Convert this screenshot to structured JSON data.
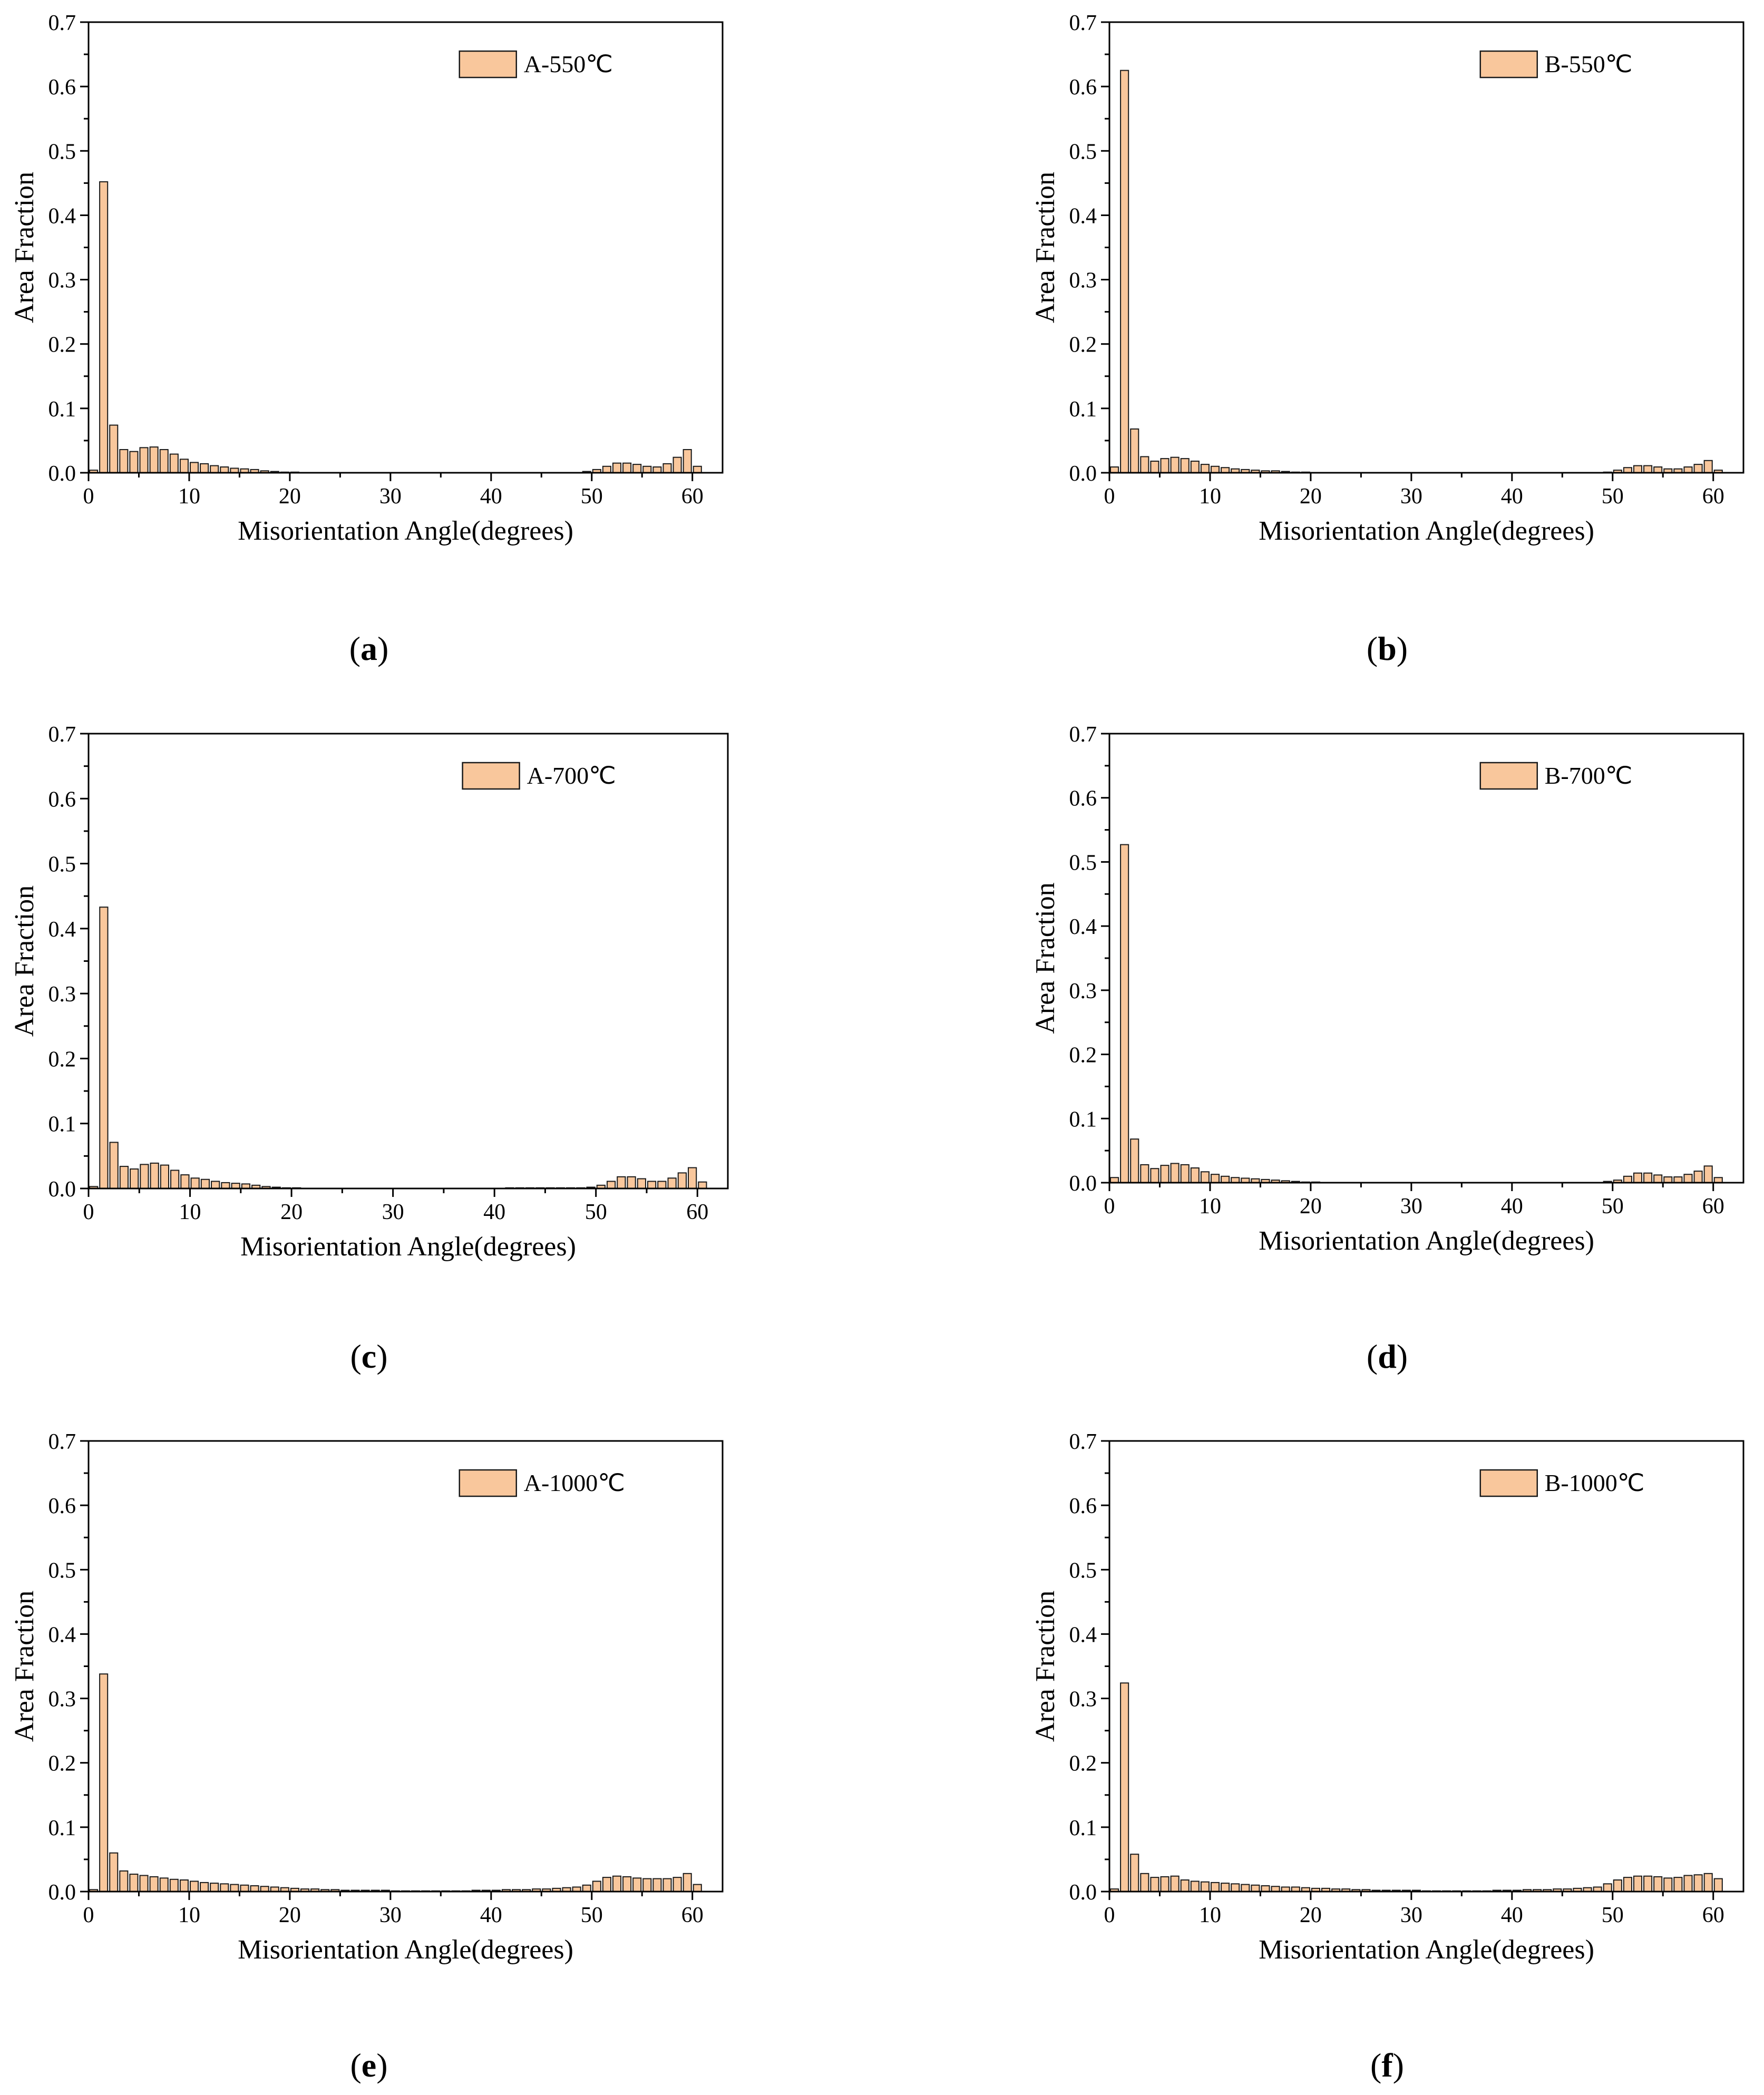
{
  "figure": {
    "bar_color": "#F9C79C",
    "bar_edge": "#1a1a1a"
  },
  "chart_data": [
    {
      "type": "bar",
      "panel": "(a)",
      "legend": "A-550℃",
      "legend_position": "top-right",
      "xlabel": "Misorientation Angle(degrees)",
      "ylabel": "Area Fraction",
      "xlim": [
        0,
        63
      ],
      "ylim": [
        0,
        0.7
      ],
      "xticks": [
        0,
        10,
        20,
        30,
        40,
        50,
        60
      ],
      "yticks": [
        0.0,
        0.1,
        0.2,
        0.3,
        0.4,
        0.5,
        0.6,
        0.7
      ],
      "bin_width": 1,
      "x": [
        0,
        1,
        2,
        3,
        4,
        5,
        6,
        7,
        8,
        9,
        10,
        11,
        12,
        13,
        14,
        15,
        16,
        17,
        18,
        19,
        20,
        21,
        22,
        23,
        24,
        25,
        26,
        27,
        28,
        29,
        30,
        31,
        32,
        33,
        34,
        35,
        36,
        37,
        38,
        39,
        40,
        41,
        42,
        43,
        44,
        45,
        46,
        47,
        48,
        49,
        50,
        51,
        52,
        53,
        54,
        55,
        56,
        57,
        58,
        59,
        60
      ],
      "values": [
        0.004,
        0.452,
        0.074,
        0.036,
        0.033,
        0.039,
        0.04,
        0.036,
        0.029,
        0.021,
        0.016,
        0.014,
        0.011,
        0.009,
        0.007,
        0.006,
        0.005,
        0.003,
        0.002,
        0.001,
        0.001,
        0,
        0,
        0,
        0,
        0,
        0,
        0,
        0,
        0,
        0,
        0,
        0,
        0,
        0,
        0,
        0,
        0,
        0,
        0,
        0,
        0,
        0,
        0,
        0,
        0,
        0,
        0,
        0,
        0.002,
        0.005,
        0.01,
        0.015,
        0.015,
        0.013,
        0.01,
        0.009,
        0.014,
        0.024,
        0.036,
        0.01
      ]
    },
    {
      "type": "bar",
      "panel": "(b)",
      "legend": "B-550℃",
      "legend_position": "top-right",
      "xlabel": "Misorientation Angle(degrees)",
      "ylabel": "Area Fraction",
      "xlim": [
        0,
        63
      ],
      "ylim": [
        0,
        0.7
      ],
      "xticks": [
        0,
        10,
        20,
        30,
        40,
        50,
        60
      ],
      "yticks": [
        0.0,
        0.1,
        0.2,
        0.3,
        0.4,
        0.5,
        0.6,
        0.7
      ],
      "bin_width": 1,
      "x": [
        0,
        1,
        2,
        3,
        4,
        5,
        6,
        7,
        8,
        9,
        10,
        11,
        12,
        13,
        14,
        15,
        16,
        17,
        18,
        19,
        20,
        21,
        22,
        23,
        24,
        25,
        26,
        27,
        28,
        29,
        30,
        31,
        32,
        33,
        34,
        35,
        36,
        37,
        38,
        39,
        40,
        41,
        42,
        43,
        44,
        45,
        46,
        47,
        48,
        49,
        50,
        51,
        52,
        53,
        54,
        55,
        56,
        57,
        58,
        59,
        60
      ],
      "values": [
        0.009,
        0.625,
        0.068,
        0.025,
        0.018,
        0.022,
        0.024,
        0.022,
        0.018,
        0.013,
        0.01,
        0.008,
        0.006,
        0.005,
        0.004,
        0.003,
        0.003,
        0.002,
        0.001,
        0.001,
        0,
        0,
        0,
        0,
        0,
        0,
        0,
        0,
        0,
        0,
        0,
        0,
        0,
        0,
        0,
        0,
        0,
        0,
        0,
        0,
        0,
        0,
        0,
        0,
        0,
        0,
        0,
        0,
        0,
        0.001,
        0.004,
        0.008,
        0.011,
        0.011,
        0.009,
        0.006,
        0.006,
        0.009,
        0.013,
        0.019,
        0.004
      ]
    },
    {
      "type": "bar",
      "panel": "(c)",
      "legend": "A-700℃",
      "legend_position": "top-right",
      "xlabel": "Misorientation Angle(degrees)",
      "ylabel": "Area Fraction",
      "xlim": [
        0,
        63
      ],
      "ylim": [
        0,
        0.7
      ],
      "xticks": [
        0,
        10,
        20,
        30,
        40,
        50,
        60
      ],
      "yticks": [
        0.0,
        0.1,
        0.2,
        0.3,
        0.4,
        0.5,
        0.6,
        0.7
      ],
      "bin_width": 1,
      "x": [
        0,
        1,
        2,
        3,
        4,
        5,
        6,
        7,
        8,
        9,
        10,
        11,
        12,
        13,
        14,
        15,
        16,
        17,
        18,
        19,
        20,
        21,
        22,
        23,
        24,
        25,
        26,
        27,
        28,
        29,
        30,
        31,
        32,
        33,
        34,
        35,
        36,
        37,
        38,
        39,
        40,
        41,
        42,
        43,
        44,
        45,
        46,
        47,
        48,
        49,
        50,
        51,
        52,
        53,
        54,
        55,
        56,
        57,
        58,
        59,
        60
      ],
      "values": [
        0.003,
        0.433,
        0.071,
        0.034,
        0.03,
        0.037,
        0.039,
        0.036,
        0.028,
        0.021,
        0.016,
        0.014,
        0.011,
        0.009,
        0.008,
        0.007,
        0.005,
        0.003,
        0.002,
        0.001,
        0.001,
        0,
        0,
        0,
        0,
        0,
        0,
        0,
        0,
        0,
        0,
        0,
        0,
        0,
        0,
        0,
        0,
        0,
        0,
        0,
        0,
        0.001,
        0.001,
        0.001,
        0.001,
        0.001,
        0.001,
        0.001,
        0.001,
        0.002,
        0.005,
        0.011,
        0.018,
        0.018,
        0.015,
        0.011,
        0.011,
        0.016,
        0.024,
        0.032,
        0.01
      ]
    },
    {
      "type": "bar",
      "panel": "(d)",
      "legend": "B-700℃",
      "legend_position": "top-right",
      "xlabel": "Misorientation Angle(degrees)",
      "ylabel": "Area Fraction",
      "xlim": [
        0,
        63
      ],
      "ylim": [
        0,
        0.7
      ],
      "xticks": [
        0,
        10,
        20,
        30,
        40,
        50,
        60
      ],
      "yticks": [
        0.0,
        0.1,
        0.2,
        0.3,
        0.4,
        0.5,
        0.6,
        0.7
      ],
      "bin_width": 1,
      "x": [
        0,
        1,
        2,
        3,
        4,
        5,
        6,
        7,
        8,
        9,
        10,
        11,
        12,
        13,
        14,
        15,
        16,
        17,
        18,
        19,
        20,
        21,
        22,
        23,
        24,
        25,
        26,
        27,
        28,
        29,
        30,
        31,
        32,
        33,
        34,
        35,
        36,
        37,
        38,
        39,
        40,
        41,
        42,
        43,
        44,
        45,
        46,
        47,
        48,
        49,
        50,
        51,
        52,
        53,
        54,
        55,
        56,
        57,
        58,
        59,
        60
      ],
      "values": [
        0.008,
        0.527,
        0.068,
        0.028,
        0.022,
        0.027,
        0.03,
        0.028,
        0.023,
        0.017,
        0.013,
        0.01,
        0.008,
        0.007,
        0.006,
        0.005,
        0.004,
        0.003,
        0.002,
        0.001,
        0.001,
        0,
        0,
        0,
        0,
        0,
        0,
        0,
        0,
        0,
        0,
        0,
        0,
        0,
        0,
        0,
        0,
        0,
        0,
        0,
        0,
        0,
        0,
        0,
        0,
        0,
        0,
        0,
        0,
        0.002,
        0.004,
        0.01,
        0.015,
        0.015,
        0.012,
        0.009,
        0.009,
        0.013,
        0.018,
        0.026,
        0.008
      ]
    },
    {
      "type": "bar",
      "panel": "(e)",
      "legend": "A-1000℃",
      "legend_position": "top-right",
      "xlabel": "Misorientation Angle(degrees)",
      "ylabel": "Area Fraction",
      "xlim": [
        0,
        63
      ],
      "ylim": [
        0,
        0.7
      ],
      "xticks": [
        0,
        10,
        20,
        30,
        40,
        50,
        60
      ],
      "yticks": [
        0.0,
        0.1,
        0.2,
        0.3,
        0.4,
        0.5,
        0.6,
        0.7
      ],
      "bin_width": 1,
      "x": [
        0,
        1,
        2,
        3,
        4,
        5,
        6,
        7,
        8,
        9,
        10,
        11,
        12,
        13,
        14,
        15,
        16,
        17,
        18,
        19,
        20,
        21,
        22,
        23,
        24,
        25,
        26,
        27,
        28,
        29,
        30,
        31,
        32,
        33,
        34,
        35,
        36,
        37,
        38,
        39,
        40,
        41,
        42,
        43,
        44,
        45,
        46,
        47,
        48,
        49,
        50,
        51,
        52,
        53,
        54,
        55,
        56,
        57,
        58,
        59,
        60
      ],
      "values": [
        0.003,
        0.338,
        0.06,
        0.032,
        0.027,
        0.025,
        0.023,
        0.021,
        0.019,
        0.018,
        0.016,
        0.014,
        0.013,
        0.012,
        0.011,
        0.01,
        0.009,
        0.008,
        0.007,
        0.006,
        0.005,
        0.004,
        0.004,
        0.003,
        0.003,
        0.002,
        0.002,
        0.002,
        0.002,
        0.002,
        0.001,
        0.001,
        0.001,
        0.001,
        0.001,
        0.001,
        0.001,
        0.001,
        0.002,
        0.002,
        0.002,
        0.003,
        0.003,
        0.003,
        0.004,
        0.004,
        0.005,
        0.006,
        0.007,
        0.01,
        0.016,
        0.022,
        0.024,
        0.023,
        0.021,
        0.02,
        0.02,
        0.02,
        0.022,
        0.028,
        0.011
      ]
    },
    {
      "type": "bar",
      "panel": "(f)",
      "legend": "B-1000℃",
      "legend_position": "top-right",
      "xlabel": "Misorientation Angle(degrees)",
      "ylabel": "Area Fraction",
      "xlim": [
        0,
        63
      ],
      "ylim": [
        0,
        0.7
      ],
      "xticks": [
        0,
        10,
        20,
        30,
        40,
        50,
        60
      ],
      "yticks": [
        0.0,
        0.1,
        0.2,
        0.3,
        0.4,
        0.5,
        0.6,
        0.7
      ],
      "bin_width": 1,
      "x": [
        0,
        1,
        2,
        3,
        4,
        5,
        6,
        7,
        8,
        9,
        10,
        11,
        12,
        13,
        14,
        15,
        16,
        17,
        18,
        19,
        20,
        21,
        22,
        23,
        24,
        25,
        26,
        27,
        28,
        29,
        30,
        31,
        32,
        33,
        34,
        35,
        36,
        37,
        38,
        39,
        40,
        41,
        42,
        43,
        44,
        45,
        46,
        47,
        48,
        49,
        50,
        51,
        52,
        53,
        54,
        55,
        56,
        57,
        58,
        59,
        60
      ],
      "values": [
        0.004,
        0.324,
        0.058,
        0.028,
        0.022,
        0.023,
        0.024,
        0.018,
        0.016,
        0.015,
        0.014,
        0.013,
        0.012,
        0.011,
        0.01,
        0.009,
        0.008,
        0.007,
        0.007,
        0.006,
        0.005,
        0.005,
        0.004,
        0.004,
        0.003,
        0.003,
        0.002,
        0.002,
        0.002,
        0.002,
        0.002,
        0.001,
        0.001,
        0.001,
        0.001,
        0.001,
        0.001,
        0.001,
        0.002,
        0.002,
        0.002,
        0.003,
        0.003,
        0.003,
        0.004,
        0.004,
        0.005,
        0.006,
        0.007,
        0.012,
        0.018,
        0.022,
        0.024,
        0.024,
        0.023,
        0.021,
        0.022,
        0.025,
        0.026,
        0.028,
        0.02
      ]
    }
  ]
}
